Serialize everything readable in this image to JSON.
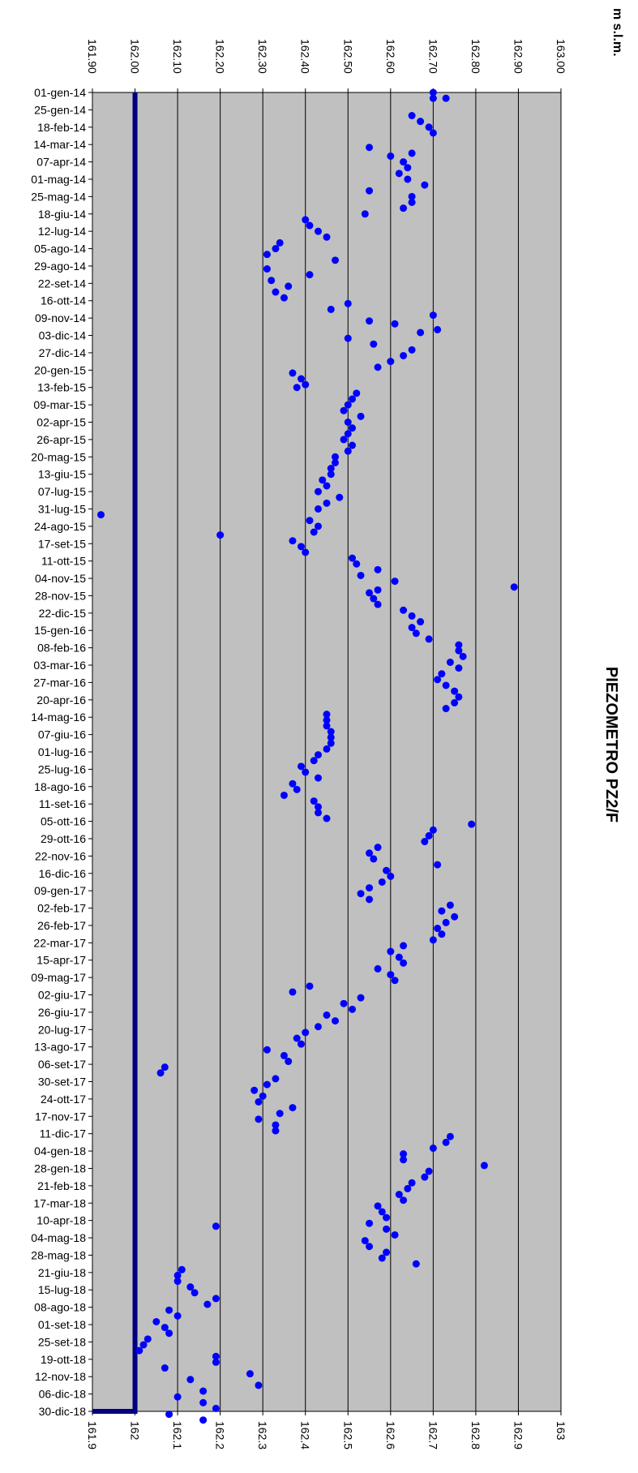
{
  "chart_data": {
    "type": "scatter",
    "title": "PIEZOMETRO PZ2/F",
    "unit_label": "m s.l.m.",
    "ylim": [
      161.9,
      163.0
    ],
    "top_ticks": [
      "161.90",
      "162.00",
      "162.10",
      "162.20",
      "162.30",
      "162.40",
      "162.50",
      "162.60",
      "162.70",
      "162.80",
      "162.90",
      "163.00"
    ],
    "bottom_ticks": [
      "161.9",
      "162",
      "162.1",
      "162.2",
      "162.3",
      "162.4",
      "162.5",
      "162.6",
      "162.7",
      "162.8",
      "162.9",
      "163"
    ],
    "grid": true,
    "background": "#c0c0c0",
    "point_color": "#0000ff",
    "threshold": {
      "value": 162.0,
      "color": "#000080"
    },
    "date_labels": [
      "01-gen-14",
      "25-gen-14",
      "18-feb-14",
      "14-mar-14",
      "07-apr-14",
      "01-mag-14",
      "25-mag-14",
      "18-giu-14",
      "12-lug-14",
      "05-ago-14",
      "29-ago-14",
      "22-set-14",
      "16-ott-14",
      "09-nov-14",
      "03-dic-14",
      "27-dic-14",
      "20-gen-15",
      "13-feb-15",
      "09-mar-15",
      "02-apr-15",
      "26-apr-15",
      "20-mag-15",
      "13-giu-15",
      "07-lug-15",
      "31-lug-15",
      "24-ago-15",
      "17-set-15",
      "11-ott-15",
      "04-nov-15",
      "28-nov-15",
      "22-dic-15",
      "15-gen-16",
      "08-feb-16",
      "03-mar-16",
      "27-mar-16",
      "20-apr-16",
      "14-mag-16",
      "07-giu-16",
      "01-lug-16",
      "25-lug-16",
      "18-ago-16",
      "11-set-16",
      "05-ott-16",
      "29-ott-16",
      "22-nov-16",
      "16-dic-16",
      "09-gen-17",
      "02-feb-17",
      "26-feb-17",
      "22-mar-17",
      "15-apr-17",
      "09-mag-17",
      "02-giu-17",
      "26-giu-17",
      "20-lug-17",
      "13-ago-17",
      "06-set-17",
      "30-set-17",
      "24-ott-17",
      "17-nov-17",
      "11-dic-17",
      "04-gen-18",
      "28-gen-18",
      "21-feb-18",
      "17-mar-18",
      "10-apr-18",
      "04-mag-18",
      "28-mag-18",
      "21-giu-18",
      "15-lug-18",
      "08-ago-18",
      "01-set-18",
      "25-set-18",
      "19-ott-18",
      "12-nov-18",
      "06-dic-18",
      "30-dic-18"
    ],
    "readings": [
      [
        0,
        162.7
      ],
      [
        2,
        162.7
      ],
      [
        2,
        162.73
      ],
      [
        8,
        162.65
      ],
      [
        10,
        162.67
      ],
      [
        12,
        162.69
      ],
      [
        14,
        162.7
      ],
      [
        19,
        162.55
      ],
      [
        21,
        162.65
      ],
      [
        22,
        162.6
      ],
      [
        24,
        162.63
      ],
      [
        26,
        162.64
      ],
      [
        28,
        162.62
      ],
      [
        30,
        162.64
      ],
      [
        32,
        162.68
      ],
      [
        34,
        162.55
      ],
      [
        36,
        162.65
      ],
      [
        38,
        162.65
      ],
      [
        40,
        162.63
      ],
      [
        42,
        162.54
      ],
      [
        44,
        162.4
      ],
      [
        46,
        162.41
      ],
      [
        48,
        162.43
      ],
      [
        50,
        162.45
      ],
      [
        52,
        162.34
      ],
      [
        54,
        162.33
      ],
      [
        56,
        162.31
      ],
      [
        58,
        162.47
      ],
      [
        61,
        162.31
      ],
      [
        63,
        162.41
      ],
      [
        65,
        162.32
      ],
      [
        67,
        162.36
      ],
      [
        69,
        162.33
      ],
      [
        71,
        162.35
      ],
      [
        73,
        162.5
      ],
      [
        75,
        162.46
      ],
      [
        77,
        162.7
      ],
      [
        79,
        162.55
      ],
      [
        80,
        162.61
      ],
      [
        82,
        162.71
      ],
      [
        83,
        162.67
      ],
      [
        85,
        162.5
      ],
      [
        87,
        162.56
      ],
      [
        89,
        162.65
      ],
      [
        91,
        162.63
      ],
      [
        93,
        162.6
      ],
      [
        95,
        162.57
      ],
      [
        97,
        162.37
      ],
      [
        99,
        162.39
      ],
      [
        101,
        162.4
      ],
      [
        102,
        162.38
      ],
      [
        104,
        162.52
      ],
      [
        106,
        162.51
      ],
      [
        108,
        162.5
      ],
      [
        110,
        162.49
      ],
      [
        112,
        162.53
      ],
      [
        114,
        162.5
      ],
      [
        116,
        162.51
      ],
      [
        118,
        162.5
      ],
      [
        120,
        162.49
      ],
      [
        122,
        162.51
      ],
      [
        124,
        162.5
      ],
      [
        126,
        162.47
      ],
      [
        128,
        162.47
      ],
      [
        130,
        162.46
      ],
      [
        132,
        162.46
      ],
      [
        134,
        162.44
      ],
      [
        136,
        162.45
      ],
      [
        138,
        162.43
      ],
      [
        140,
        162.48
      ],
      [
        142,
        162.45
      ],
      [
        144,
        162.43
      ],
      [
        146,
        161.92
      ],
      [
        148,
        162.41
      ],
      [
        150,
        162.43
      ],
      [
        152,
        162.42
      ],
      [
        153,
        162.2
      ],
      [
        155,
        162.37
      ],
      [
        157,
        162.39
      ],
      [
        159,
        162.4
      ],
      [
        161,
        162.51
      ],
      [
        163,
        162.52
      ],
      [
        165,
        162.57
      ],
      [
        167,
        162.53
      ],
      [
        169,
        162.61
      ],
      [
        171,
        162.89
      ],
      [
        172,
        162.57
      ],
      [
        173,
        162.55
      ],
      [
        175,
        162.56
      ],
      [
        177,
        162.57
      ],
      [
        179,
        162.63
      ],
      [
        181,
        162.65
      ],
      [
        183,
        162.67
      ],
      [
        185,
        162.65
      ],
      [
        187,
        162.66
      ],
      [
        189,
        162.69
      ],
      [
        191,
        162.76
      ],
      [
        193,
        162.76
      ],
      [
        195,
        162.77
      ],
      [
        197,
        162.74
      ],
      [
        199,
        162.76
      ],
      [
        201,
        162.72
      ],
      [
        203,
        162.71
      ],
      [
        205,
        162.73
      ],
      [
        207,
        162.75
      ],
      [
        209,
        162.76
      ],
      [
        211,
        162.75
      ],
      [
        213,
        162.73
      ],
      [
        215,
        162.45
      ],
      [
        217,
        162.45
      ],
      [
        219,
        162.45
      ],
      [
        221,
        162.46
      ],
      [
        223,
        162.46
      ],
      [
        225,
        162.46
      ],
      [
        227,
        162.45
      ],
      [
        229,
        162.43
      ],
      [
        231,
        162.42
      ],
      [
        233,
        162.39
      ],
      [
        235,
        162.4
      ],
      [
        237,
        162.43
      ],
      [
        239,
        162.37
      ],
      [
        241,
        162.38
      ],
      [
        243,
        162.35
      ],
      [
        245,
        162.42
      ],
      [
        247,
        162.43
      ],
      [
        249,
        162.43
      ],
      [
        251,
        162.45
      ],
      [
        253,
        162.79
      ],
      [
        255,
        162.7
      ],
      [
        257,
        162.69
      ],
      [
        259,
        162.68
      ],
      [
        261,
        162.57
      ],
      [
        263,
        162.55
      ],
      [
        265,
        162.56
      ],
      [
        267,
        162.71
      ],
      [
        269,
        162.59
      ],
      [
        271,
        162.6
      ],
      [
        273,
        162.58
      ],
      [
        275,
        162.55
      ],
      [
        277,
        162.53
      ],
      [
        279,
        162.55
      ],
      [
        281,
        162.74
      ],
      [
        283,
        162.72
      ],
      [
        285,
        162.75
      ],
      [
        287,
        162.73
      ],
      [
        289,
        162.71
      ],
      [
        291,
        162.72
      ],
      [
        293,
        162.7
      ],
      [
        295,
        162.63
      ],
      [
        297,
        162.6
      ],
      [
        299,
        162.62
      ],
      [
        301,
        162.63
      ],
      [
        303,
        162.57
      ],
      [
        305,
        162.6
      ],
      [
        307,
        162.61
      ],
      [
        309,
        162.41
      ],
      [
        311,
        162.37
      ],
      [
        313,
        162.53
      ],
      [
        315,
        162.49
      ],
      [
        317,
        162.51
      ],
      [
        319,
        162.45
      ],
      [
        321,
        162.47
      ],
      [
        323,
        162.43
      ],
      [
        325,
        162.4
      ],
      [
        327,
        162.38
      ],
      [
        329,
        162.39
      ],
      [
        331,
        162.31
      ],
      [
        333,
        162.35
      ],
      [
        335,
        162.36
      ],
      [
        337,
        162.07
      ],
      [
        339,
        162.06
      ],
      [
        341,
        162.33
      ],
      [
        343,
        162.31
      ],
      [
        345,
        162.28
      ],
      [
        347,
        162.3
      ],
      [
        349,
        162.29
      ],
      [
        351,
        162.37
      ],
      [
        353,
        162.34
      ],
      [
        355,
        162.29
      ],
      [
        357,
        162.33
      ],
      [
        359,
        162.33
      ],
      [
        361,
        162.74
      ],
      [
        363,
        162.73
      ],
      [
        365,
        162.7
      ],
      [
        367,
        162.63
      ],
      [
        369,
        162.63
      ],
      [
        371,
        162.82
      ],
      [
        373,
        162.69
      ],
      [
        375,
        162.68
      ],
      [
        377,
        162.65
      ],
      [
        379,
        162.64
      ],
      [
        381,
        162.62
      ],
      [
        383,
        162.63
      ],
      [
        385,
        162.57
      ],
      [
        387,
        162.58
      ],
      [
        389,
        162.59
      ],
      [
        391,
        162.55
      ],
      [
        392,
        162.19
      ],
      [
        393,
        162.59
      ],
      [
        395,
        162.61
      ],
      [
        397,
        162.54
      ],
      [
        399,
        162.55
      ],
      [
        401,
        162.59
      ],
      [
        403,
        162.58
      ],
      [
        405,
        162.66
      ],
      [
        407,
        162.11
      ],
      [
        409,
        162.1
      ],
      [
        411,
        162.1
      ],
      [
        413,
        162.13
      ],
      [
        415,
        162.14
      ],
      [
        417,
        162.19
      ],
      [
        419,
        162.17
      ],
      [
        421,
        162.08
      ],
      [
        423,
        162.1
      ],
      [
        425,
        162.05
      ],
      [
        427,
        162.07
      ],
      [
        429,
        162.08
      ],
      [
        431,
        162.03
      ],
      [
        433,
        162.02
      ],
      [
        435,
        162.01
      ],
      [
        437,
        162.19
      ],
      [
        439,
        162.19
      ],
      [
        441,
        162.07
      ],
      [
        443,
        162.27
      ],
      [
        445,
        162.13
      ],
      [
        447,
        162.29
      ],
      [
        449,
        162.16
      ],
      [
        451,
        162.1
      ],
      [
        453,
        162.16
      ],
      [
        455,
        162.19
      ],
      [
        457,
        162.08
      ],
      [
        459,
        162.16
      ]
    ]
  }
}
